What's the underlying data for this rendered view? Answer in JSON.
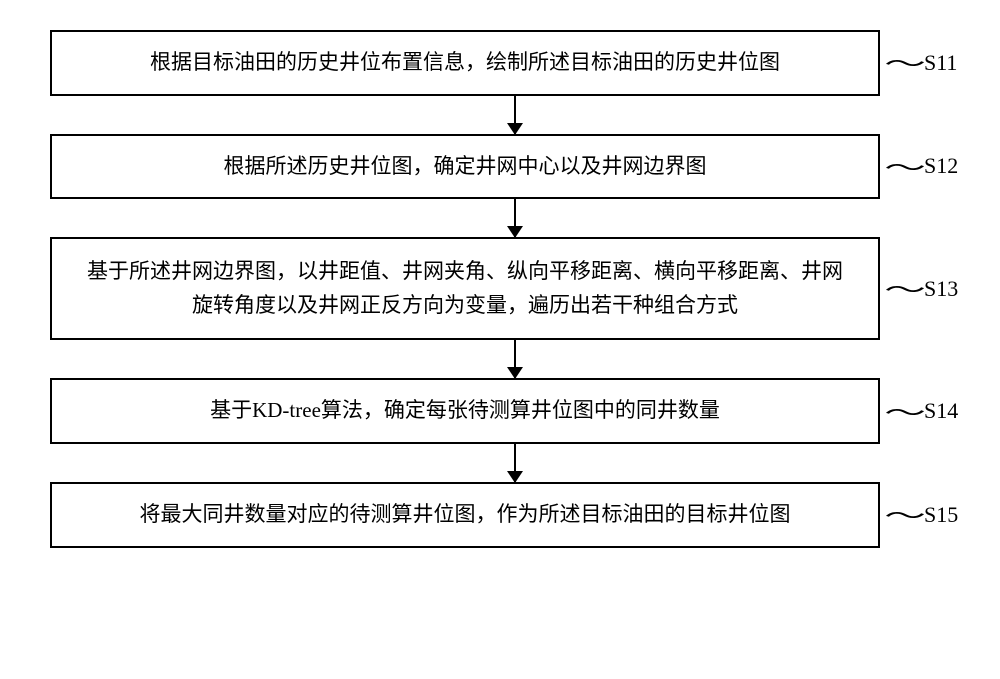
{
  "flowchart": {
    "type": "flowchart",
    "direction": "vertical",
    "background_color": "#ffffff",
    "box_border_color": "#000000",
    "box_border_width": 2,
    "arrow_color": "#000000",
    "font_family": "SimSun",
    "font_size": 21,
    "text_color": "#000000",
    "steps": [
      {
        "id": "S11",
        "text": "根据目标油田的历史井位布置信息，绘制所述目标油田的历史井位图",
        "label": "S11",
        "lines": 1
      },
      {
        "id": "S12",
        "text": "根据所述历史井位图，确定井网中心以及井网边界图",
        "label": "S12",
        "lines": 1
      },
      {
        "id": "S13",
        "text": "基于所述井网边界图，以井距值、井网夹角、纵向平移距离、横向平移距离、井网旋转角度以及井网正反方向为变量，遍历出若干种组合方式",
        "label": "S13",
        "lines": 2
      },
      {
        "id": "S14",
        "text": "基于KD-tree算法，确定每张待测算井位图中的同井数量",
        "label": "S14",
        "lines": 1
      },
      {
        "id": "S15",
        "text": "将最大同井数量对应的待测算井位图，作为所述目标油田的目标井位图",
        "label": "S15",
        "lines": 1
      }
    ]
  }
}
